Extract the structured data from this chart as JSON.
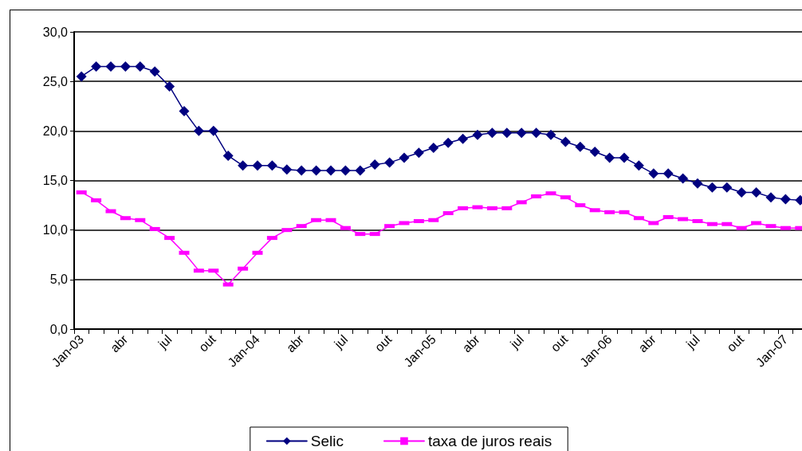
{
  "chart_data": {
    "type": "line",
    "categories": [
      "Jan-03",
      null,
      null,
      "abr",
      null,
      null,
      "jul",
      null,
      null,
      "out",
      null,
      null,
      "Jan-04",
      null,
      null,
      "abr",
      null,
      null,
      "jul",
      null,
      null,
      "out",
      null,
      null,
      "Jan-05",
      null,
      null,
      "abr",
      null,
      null,
      "jul",
      null,
      null,
      "out",
      null,
      null,
      "Jan-06",
      null,
      null,
      "abr",
      null,
      null,
      "jul",
      null,
      null,
      "out",
      null,
      null,
      "Jan-07",
      null
    ],
    "series": [
      {
        "name": "Selic",
        "color": "#000080",
        "marker": "diamond",
        "values": [
          25.5,
          26.5,
          26.5,
          26.5,
          26.5,
          26.0,
          24.5,
          22.0,
          20.0,
          20.0,
          17.5,
          16.5,
          16.5,
          16.5,
          16.1,
          16.0,
          16.0,
          16.0,
          16.0,
          16.0,
          16.6,
          16.8,
          17.3,
          17.8,
          18.3,
          18.8,
          19.2,
          19.6,
          19.8,
          19.8,
          19.8,
          19.8,
          19.6,
          18.9,
          18.4,
          17.9,
          17.3,
          17.3,
          16.5,
          15.7,
          15.7,
          15.2,
          14.7,
          14.3,
          14.3,
          13.8,
          13.8,
          13.3,
          13.1,
          13.0
        ]
      },
      {
        "name": "taxa de juros reais",
        "color": "#ff00ff",
        "marker": "square",
        "values": [
          13.8,
          13.0,
          11.9,
          11.2,
          11.0,
          10.1,
          9.2,
          7.7,
          5.9,
          5.9,
          4.5,
          6.1,
          7.7,
          9.2,
          10.0,
          10.4,
          11.0,
          11.0,
          10.2,
          9.6,
          9.6,
          10.4,
          10.7,
          10.9,
          11.0,
          11.7,
          12.2,
          12.3,
          12.2,
          12.2,
          12.8,
          13.4,
          13.7,
          13.3,
          12.5,
          12.0,
          11.8,
          11.8,
          11.2,
          10.7,
          11.3,
          11.1,
          10.9,
          10.6,
          10.6,
          10.2,
          10.7,
          10.4,
          10.2,
          10.2
        ]
      }
    ],
    "ylim": [
      0,
      30
    ],
    "yticks": [
      {
        "value": 0,
        "label": "0,0"
      },
      {
        "value": 5,
        "label": "5,0"
      },
      {
        "value": 10,
        "label": "10,0"
      },
      {
        "value": 15,
        "label": "15,0"
      },
      {
        "value": 20,
        "label": "20,0"
      },
      {
        "value": 25,
        "label": "25,0"
      },
      {
        "value": 30,
        "label": "30,0"
      }
    ],
    "grid": "y",
    "legend": "bottom",
    "line_style": "solid"
  }
}
